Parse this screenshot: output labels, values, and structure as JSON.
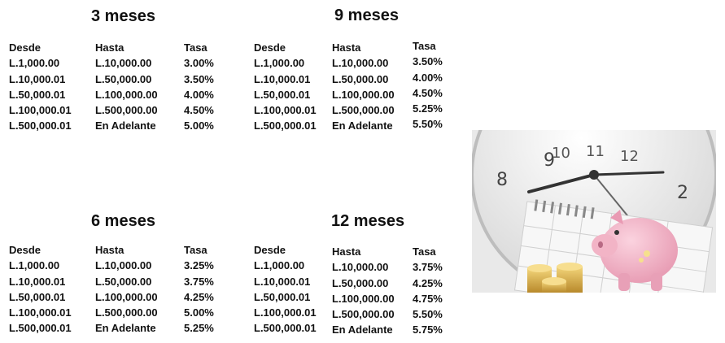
{
  "tables": [
    {
      "title": "3 meses",
      "headers": [
        "Desde",
        "Hasta",
        "Tasa"
      ],
      "desde": [
        "L.1,000.00",
        "L.10,000.01",
        "L.50,000.01",
        "L.100,000.01",
        "L.500,000.01"
      ],
      "hasta": [
        "L.10,000.00",
        "L.50,000.00",
        "L.100,000.00",
        "L.500,000.00",
        "En Adelante"
      ],
      "tasa": [
        "3.00%",
        "3.50%",
        "4.00%",
        "4.50%",
        "5.00%"
      ]
    },
    {
      "title": "9 meses",
      "headers": [
        "Desde",
        "Hasta",
        "Tasa"
      ],
      "desde": [
        "L.1,000.00",
        "L.10,000.01",
        "L.50,000.01",
        "L.100,000.01",
        "L.500,000.01"
      ],
      "hasta": [
        "L.10,000.00",
        "L.50,000.00",
        "L.100,000.00",
        "L.500,000.00",
        "En Adelante"
      ],
      "tasa": [
        "3.50%",
        "4.00%",
        "4.50%",
        "5.25%",
        "5.50%"
      ]
    },
    {
      "title": "6 meses",
      "headers": [
        "Desde",
        "Hasta",
        "Tasa"
      ],
      "desde": [
        "L.1,000.00",
        "L.10,000.01",
        "L.50,000.01",
        "L.100,000.01",
        "L.500,000.01"
      ],
      "hasta": [
        "L.10,000.00",
        "L.50,000.00",
        "L.100,000.00",
        "L.500,000.00",
        "En Adelante"
      ],
      "tasa": [
        "3.25%",
        "3.75%",
        "4.25%",
        "5.00%",
        "5.25%"
      ]
    },
    {
      "title": "12 meses",
      "headers": [
        "Desde",
        "Hasta",
        "Tasa"
      ],
      "desde": [
        "L.1,000.00",
        "L.10,000.01",
        "L.50,000.01",
        "L.100,000.01",
        "L.500,000.01"
      ],
      "hasta": [
        "L.10,000.00",
        "L.50,000.00",
        "L.100,000.00",
        "L.500,000.00",
        "En Adelante"
      ],
      "tasa": [
        "3.75%",
        "4.25%",
        "4.75%",
        "5.50%",
        "5.75%"
      ]
    }
  ]
}
